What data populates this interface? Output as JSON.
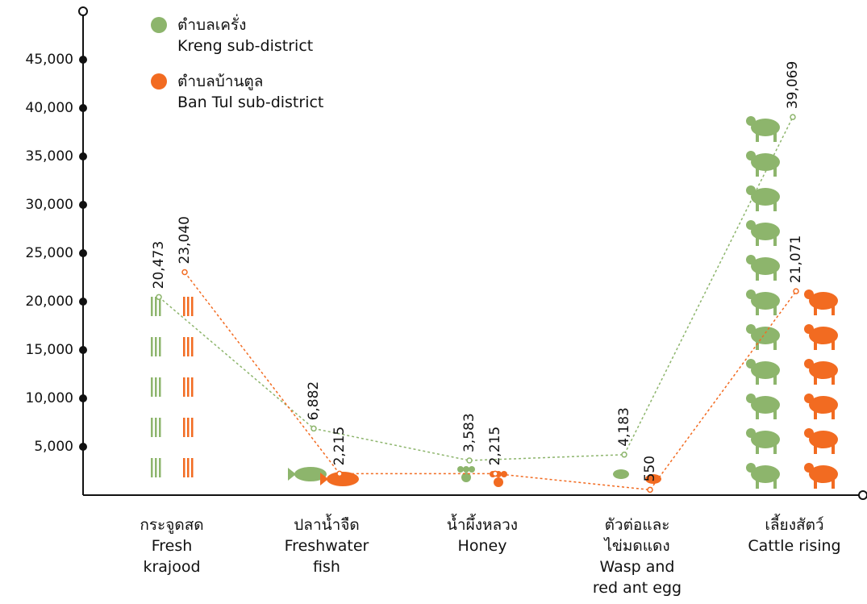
{
  "chart_data": {
    "type": "line",
    "categories": [
      "กระจูดสด\nFresh\nkrajood",
      "ปลาน้ำจืด\nFreshwater\nfish",
      "น้ำผึ้งหลวง\nHoney",
      "ตัวต่อและ\nไข่มดแดง\nWasp and\nred ant egg",
      "เลี้ยงสัตว์\nCattle rising"
    ],
    "series": [
      {
        "name": "ตำบลเครั่ง\nKreng sub-district",
        "color": "#8db56c",
        "values": [
          20473,
          6882,
          3583,
          4183,
          39069
        ],
        "value_labels": [
          "20,473",
          "6,882",
          "3,583",
          "4,183",
          "39,069"
        ]
      },
      {
        "name": "ตำบลบ้านตูล\nBan Tul sub-district",
        "color": "#f26b21",
        "values": [
          23040,
          2215,
          2215,
          550,
          21071
        ],
        "value_labels": [
          "23,040",
          "2,215",
          "2,215",
          "550",
          "21,071"
        ]
      }
    ],
    "ylim": [
      0,
      50000
    ],
    "yticks": [
      {
        "value": 5000,
        "label": "5,000"
      },
      {
        "value": 10000,
        "label": "10,000"
      },
      {
        "value": 15000,
        "label": "15,000"
      },
      {
        "value": 20000,
        "label": "20,000"
      },
      {
        "value": 25000,
        "label": "25,000"
      },
      {
        "value": 30000,
        "label": "30,000"
      },
      {
        "value": 35000,
        "label": "35,000"
      },
      {
        "value": 40000,
        "label": "40,000"
      },
      {
        "value": 45000,
        "label": "45,000"
      }
    ]
  }
}
